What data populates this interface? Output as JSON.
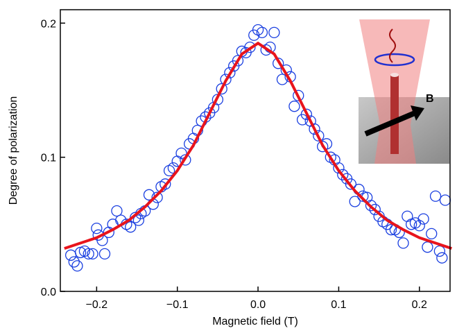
{
  "chart_data": {
    "type": "scatter",
    "x_label": "Magnetic field (T)",
    "y_label": "Degree of polarization",
    "annotations": [
      "B"
    ],
    "xlim": [
      -0.245,
      0.238
    ],
    "ylim": [
      0,
      0.21
    ],
    "xticks": [
      {
        "value": -0.2,
        "label": "−0.2"
      },
      {
        "value": -0.1,
        "label": "−0.1"
      },
      {
        "value": 0,
        "label": "0.0"
      },
      {
        "value": 0.1,
        "label": "0.1"
      },
      {
        "value": 0.2,
        "label": "0.2"
      }
    ],
    "yticks": [
      {
        "value": 0,
        "label": "0.0"
      },
      0.1,
      0.2
    ],
    "series": [
      {
        "style": "markers",
        "color": "#1a3fe0",
        "x": [
          -0.232,
          -0.228,
          -0.224,
          -0.22,
          -0.215,
          -0.21,
          -0.205,
          -0.2,
          -0.198,
          -0.193,
          -0.19,
          -0.185,
          -0.18,
          -0.175,
          -0.17,
          -0.163,
          -0.158,
          -0.152,
          -0.148,
          -0.145,
          -0.14,
          -0.135,
          -0.13,
          -0.125,
          -0.12,
          -0.115,
          -0.11,
          -0.105,
          -0.1,
          -0.095,
          -0.09,
          -0.085,
          -0.08,
          -0.075,
          -0.07,
          -0.065,
          -0.06,
          -0.055,
          -0.05,
          -0.045,
          -0.04,
          -0.035,
          -0.03,
          -0.025,
          -0.02,
          -0.015,
          -0.01,
          -0.005,
          0,
          0.005,
          0.01,
          0.015,
          0.02,
          0.025,
          0.03,
          0.035,
          0.04,
          0.045,
          0.05,
          0.055,
          0.06,
          0.065,
          0.07,
          0.075,
          0.08,
          0.085,
          0.09,
          0.095,
          0.1,
          0.105,
          0.11,
          0.115,
          0.12,
          0.125,
          0.13,
          0.135,
          0.14,
          0.145,
          0.15,
          0.155,
          0.16,
          0.165,
          0.17,
          0.175,
          0.18,
          0.185,
          0.19,
          0.195,
          0.2,
          0.205,
          0.21,
          0.215,
          0.22,
          0.225,
          0.228,
          0.232
        ],
        "values": [
          0.027,
          0.022,
          0.019,
          0.029,
          0.03,
          0.028,
          0.028,
          0.047,
          0.042,
          0.038,
          0.028,
          0.044,
          0.05,
          0.06,
          0.053,
          0.05,
          0.048,
          0.055,
          0.053,
          0.058,
          0.06,
          0.072,
          0.065,
          0.07,
          0.078,
          0.08,
          0.09,
          0.092,
          0.097,
          0.103,
          0.098,
          0.11,
          0.114,
          0.12,
          0.127,
          0.13,
          0.133,
          0.137,
          0.143,
          0.151,
          0.158,
          0.163,
          0.168,
          0.172,
          0.179,
          0.178,
          0.182,
          0.191,
          0.195,
          0.193,
          0.18,
          0.182,
          0.193,
          0.17,
          0.158,
          0.165,
          0.16,
          0.138,
          0.146,
          0.128,
          0.132,
          0.127,
          0.121,
          0.116,
          0.108,
          0.11,
          0.1,
          0.098,
          0.092,
          0.087,
          0.084,
          0.08,
          0.067,
          0.076,
          0.071,
          0.07,
          0.064,
          0.061,
          0.056,
          0.052,
          0.05,
          0.046,
          0.046,
          0.044,
          0.036,
          0.056,
          0.05,
          0.051,
          0.049,
          0.054,
          0.033,
          0.043,
          0.071,
          0.03,
          0.025,
          0.068
        ]
      },
      {
        "style": "line",
        "color": "#e8141c",
        "x": [
          -0.24,
          -0.22,
          -0.2,
          -0.18,
          -0.16,
          -0.14,
          -0.12,
          -0.1,
          -0.08,
          -0.06,
          -0.04,
          -0.02,
          0,
          0.02,
          0.04,
          0.06,
          0.08,
          0.1,
          0.12,
          0.14,
          0.16,
          0.18,
          0.2,
          0.22,
          0.24
        ],
        "values": [
          0.032,
          0.036,
          0.04,
          0.046,
          0.053,
          0.063,
          0.075,
          0.09,
          0.109,
          0.133,
          0.157,
          0.177,
          0.185,
          0.177,
          0.157,
          0.133,
          0.109,
          0.09,
          0.075,
          0.063,
          0.053,
          0.046,
          0.04,
          0.036,
          0.032
        ]
      }
    ]
  }
}
